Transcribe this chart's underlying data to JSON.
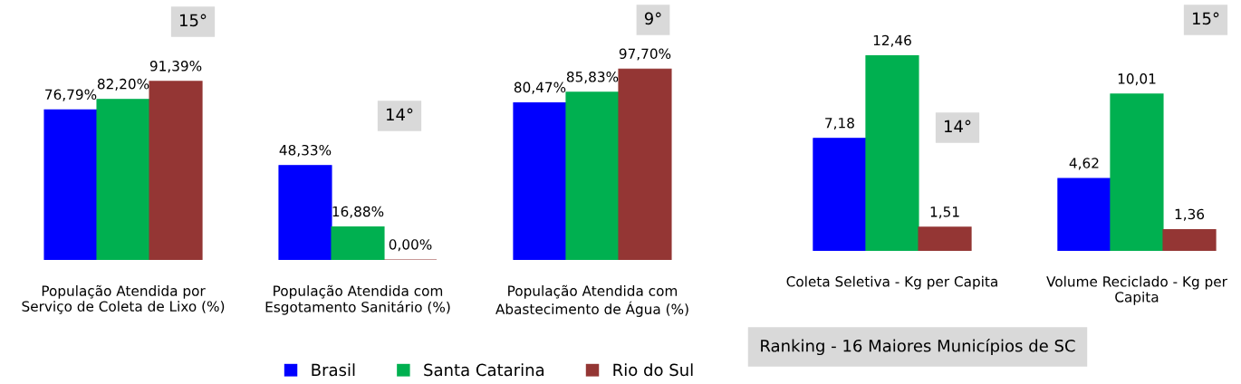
{
  "chart_data": [
    {
      "type": "bar",
      "categories": [
        "População Atendida por\nServiço de Coleta de Lixo (%)",
        "População Atendida com\nEsgotamento Sanitário (%)",
        "População Atendida com\nAbastecimento de Água (%)"
      ],
      "series": [
        {
          "name": "Brasil",
          "color": "#0000ff",
          "values": [
            76.79,
            48.33,
            80.47
          ],
          "value_labels": [
            "76,79%",
            "48,33%",
            "80,47%"
          ]
        },
        {
          "name": "Santa Catarina",
          "color": "#00b050",
          "values": [
            82.2,
            16.88,
            85.83
          ],
          "value_labels": [
            "82,20%",
            "16,88%",
            "85,83%"
          ]
        },
        {
          "name": "Rio do Sul",
          "color": "#943634",
          "values": [
            91.39,
            0.0,
            97.7
          ],
          "value_labels": [
            "91,39%",
            "0,00%",
            "97,70%"
          ]
        }
      ],
      "legend": "bottom",
      "grid": false,
      "annotations": [
        "15°",
        "14°",
        "9°"
      ]
    },
    {
      "type": "bar",
      "categories": [
        "Coleta Seletiva - Kg per Capita",
        "Volume Reciclado - Kg per\nCapita"
      ],
      "series": [
        {
          "color": "#0000ff",
          "values": [
            7.18,
            4.62
          ],
          "value_labels": [
            "7,18",
            "4,62"
          ]
        },
        {
          "color": "#00b050",
          "values": [
            12.46,
            10.01
          ],
          "value_labels": [
            "12,46",
            "10,01"
          ]
        },
        {
          "color": "#943634",
          "values": [
            1.51,
            1.36
          ],
          "value_labels": [
            "1,51",
            "1,36"
          ]
        }
      ],
      "grid": false,
      "annotations": [
        "14°",
        "15°",
        "Ranking - 16 Maiores Municípios de SC"
      ]
    }
  ]
}
